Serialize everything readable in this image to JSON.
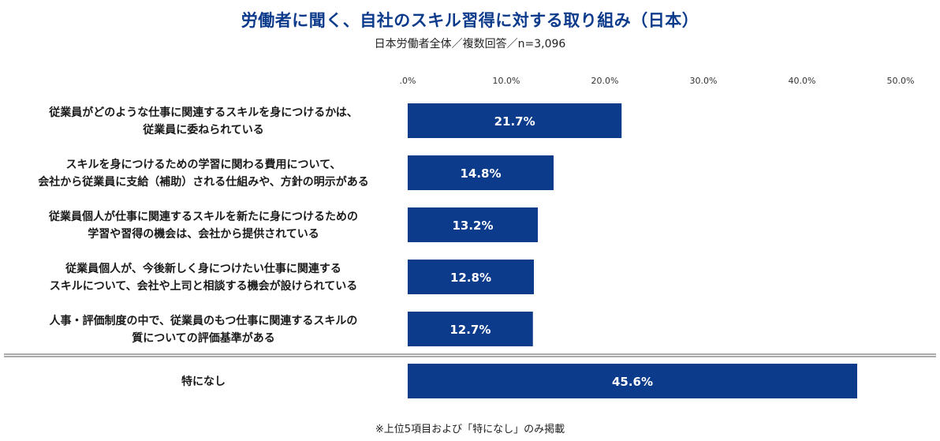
{
  "title": "労働者に聞く、自社のスキル習得に対する取り組み（日本）",
  "subtitle": "日本労働者全体／複数回答／n=3,096",
  "footnote": "※上位5項目および「特になし」のみ掲載",
  "colors": {
    "bar": "#0d3b8c",
    "title": "#0d3b8c",
    "bar_label": "#ffffff"
  },
  "chart_data": {
    "type": "bar",
    "orientation": "horizontal",
    "xlim": [
      0,
      50
    ],
    "x_tick_labels": [
      ".0%",
      "10.0%",
      "20.0%",
      "30.0%",
      "40.0%",
      "50.0%"
    ],
    "x_ticks": [
      0,
      10,
      20,
      30,
      40,
      50
    ],
    "grid": false,
    "categories": [
      [
        "従業員がどのような仕事に関連するスキルを身につけるかは、",
        "従業員に委ねられている"
      ],
      [
        "スキルを身につけるための学習に関わる費用について、",
        "会社から従業員に支給（補助）される仕組みや、方針の明示がある"
      ],
      [
        "従業員個人が仕事に関連するスキルを新たに身につけるための",
        "学習や習得の機会は、会社から提供されている"
      ],
      [
        "従業員個人が、今後新しく身につけたい仕事に関連する",
        "スキルについて、会社や上司と相談する機会が設けられている"
      ],
      [
        "人事・評価制度の中で、従業員のもつ仕事に関連するスキルの",
        "質についての評価基準がある"
      ],
      [
        "特になし"
      ]
    ],
    "values": [
      21.7,
      14.8,
      13.2,
      12.8,
      12.7,
      45.6
    ],
    "value_labels": [
      "21.7%",
      "14.8%",
      "13.2%",
      "12.8%",
      "12.7%",
      "45.6%"
    ]
  }
}
